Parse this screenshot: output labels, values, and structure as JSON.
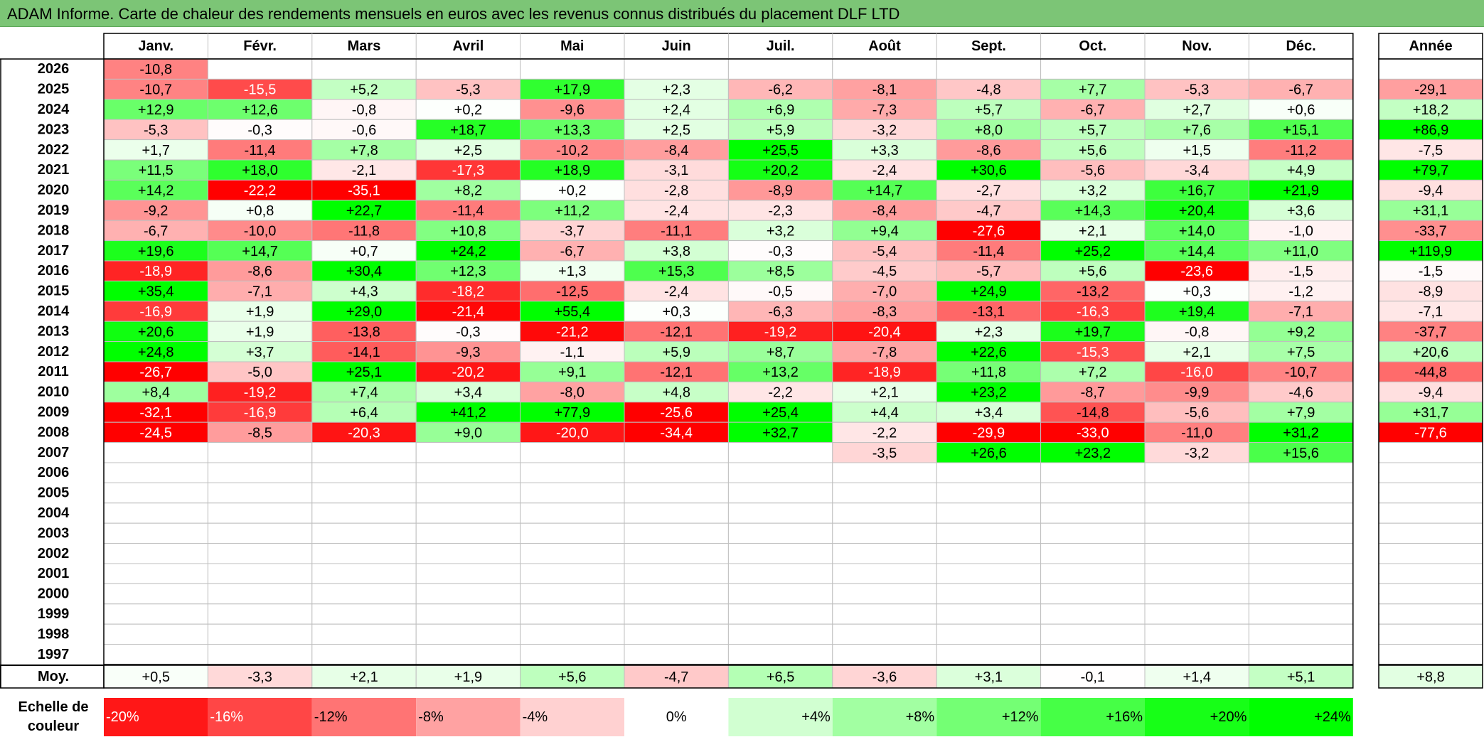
{
  "title": "ADAM Informe. Carte de chaleur des rendements mensuels en euros avec les revenus connus distribués du placement DLF LTD",
  "colors": {
    "neg_full": "#ff0000",
    "pos_full": "#00ff00",
    "neutral": "#ffffff",
    "title_bg": "#7cc576"
  },
  "chart_data": {
    "type": "heatmap",
    "columns": [
      "Janv.",
      "Févr.",
      "Mars",
      "Avril",
      "Mai",
      "Juin",
      "Juil.",
      "Août",
      "Sept.",
      "Oct.",
      "Nov.",
      "Déc."
    ],
    "annual_header": "Année",
    "rows": [
      {
        "year": "2026",
        "values": [
          "-10,8",
          "",
          "",
          "",
          "",
          "",
          "",
          "",
          "",
          "",
          "",
          ""
        ],
        "annual": ""
      },
      {
        "year": "2025",
        "values": [
          "-10,7",
          "-15,5",
          "+5,2",
          "-5,3",
          "+17,9",
          "+2,3",
          "-6,2",
          "-8,1",
          "-4,8",
          "+7,7",
          "-5,3",
          "-6,7"
        ],
        "annual": "-29,1"
      },
      {
        "year": "2024",
        "values": [
          "+12,9",
          "+12,6",
          "-0,8",
          "+0,2",
          "-9,6",
          "+2,4",
          "+6,9",
          "-7,3",
          "+5,7",
          "-6,7",
          "+2,7",
          "+0,6"
        ],
        "annual": "+18,2"
      },
      {
        "year": "2023",
        "values": [
          "-5,3",
          "-0,3",
          "-0,6",
          "+18,7",
          "+13,3",
          "+2,5",
          "+5,9",
          "-3,2",
          "+8,0",
          "+5,7",
          "+7,6",
          "+15,1"
        ],
        "annual": "+86,9"
      },
      {
        "year": "2022",
        "values": [
          "+1,7",
          "-11,4",
          "+7,8",
          "+2,5",
          "-10,2",
          "-8,4",
          "+25,5",
          "+3,3",
          "-8,6",
          "+5,6",
          "+1,5",
          "-11,2"
        ],
        "annual": "-7,5"
      },
      {
        "year": "2021",
        "values": [
          "+11,5",
          "+18,0",
          "-2,1",
          "-17,3",
          "+18,9",
          "-3,1",
          "+20,2",
          "-2,4",
          "+30,6",
          "-5,6",
          "-3,4",
          "+4,9"
        ],
        "annual": "+79,7"
      },
      {
        "year": "2020",
        "values": [
          "+14,2",
          "-22,2",
          "-35,1",
          "+8,2",
          "+0,2",
          "-2,8",
          "-8,9",
          "+14,7",
          "-2,7",
          "+3,2",
          "+16,7",
          "+21,9"
        ],
        "annual": "-9,4"
      },
      {
        "year": "2019",
        "values": [
          "-9,2",
          "+0,8",
          "+22,7",
          "-11,4",
          "+11,2",
          "-2,4",
          "-2,3",
          "-8,4",
          "-4,7",
          "+14,3",
          "+20,4",
          "+3,6"
        ],
        "annual": "+31,1"
      },
      {
        "year": "2018",
        "values": [
          "-6,7",
          "-10,0",
          "-11,8",
          "+10,8",
          "-3,7",
          "-11,1",
          "+3,2",
          "+9,4",
          "-27,6",
          "+2,1",
          "+14,0",
          "-1,0"
        ],
        "annual": "-33,7"
      },
      {
        "year": "2017",
        "values": [
          "+19,6",
          "+14,7",
          "+0,7",
          "+24,2",
          "-6,7",
          "+3,8",
          "-0,3",
          "-5,4",
          "-11,4",
          "+25,2",
          "+14,4",
          "+11,0"
        ],
        "annual": "+119,9"
      },
      {
        "year": "2016",
        "values": [
          "-18,9",
          "-8,6",
          "+30,4",
          "+12,3",
          "+1,3",
          "+15,3",
          "+8,5",
          "-4,5",
          "-5,7",
          "+5,6",
          "-23,6",
          "-1,5"
        ],
        "annual": "-1,5"
      },
      {
        "year": "2015",
        "values": [
          "+35,4",
          "-7,1",
          "+4,3",
          "-18,2",
          "-12,5",
          "-2,4",
          "-0,5",
          "-7,0",
          "+24,9",
          "-13,2",
          "+0,3",
          "-1,2"
        ],
        "annual": "-8,9"
      },
      {
        "year": "2014",
        "values": [
          "-16,9",
          "+1,9",
          "+29,0",
          "-21,4",
          "+55,4",
          "+0,3",
          "-6,3",
          "-8,3",
          "-13,1",
          "-16,3",
          "+19,4",
          "-7,1"
        ],
        "annual": "-7,1"
      },
      {
        "year": "2013",
        "values": [
          "+20,6",
          "+1,9",
          "-13,8",
          "-0,3",
          "-21,2",
          "-12,1",
          "-19,2",
          "-20,4",
          "+2,3",
          "+19,7",
          "-0,8",
          "+9,2"
        ],
        "annual": "-37,7"
      },
      {
        "year": "2012",
        "values": [
          "+24,8",
          "+3,7",
          "-14,1",
          "-9,3",
          "-1,1",
          "+5,9",
          "+8,7",
          "-7,8",
          "+22,6",
          "-15,3",
          "+2,1",
          "+7,5"
        ],
        "annual": "+20,6"
      },
      {
        "year": "2011",
        "values": [
          "-26,7",
          "-5,0",
          "+25,1",
          "-20,2",
          "+9,1",
          "-12,1",
          "+13,2",
          "-18,9",
          "+11,8",
          "+7,2",
          "-16,0",
          "-10,7"
        ],
        "annual": "-44,8"
      },
      {
        "year": "2010",
        "values": [
          "+8,4",
          "-19,2",
          "+7,4",
          "+3,4",
          "-8,0",
          "+4,8",
          "-2,2",
          "+2,1",
          "+23,2",
          "-8,7",
          "-9,9",
          "-4,6"
        ],
        "annual": "-9,4"
      },
      {
        "year": "2009",
        "values": [
          "-32,1",
          "-16,9",
          "+6,4",
          "+41,2",
          "+77,9",
          "-25,6",
          "+25,4",
          "+4,4",
          "+3,4",
          "-14,8",
          "-5,6",
          "+7,9"
        ],
        "annual": "+31,7"
      },
      {
        "year": "2008",
        "values": [
          "-24,5",
          "-8,5",
          "-20,3",
          "+9,0",
          "-20,0",
          "-34,4",
          "+32,7",
          "-2,2",
          "-29,9",
          "-33,0",
          "-11,0",
          "+31,2"
        ],
        "annual": "-77,6"
      },
      {
        "year": "2007",
        "values": [
          "",
          "",
          "",
          "",
          "",
          "",
          "",
          "-3,5",
          "+26,6",
          "+23,2",
          "-3,2",
          "+15,6"
        ],
        "annual": ""
      },
      {
        "year": "2006",
        "values": [
          "",
          "",
          "",
          "",
          "",
          "",
          "",
          "",
          "",
          "",
          "",
          ""
        ],
        "annual": ""
      },
      {
        "year": "2005",
        "values": [
          "",
          "",
          "",
          "",
          "",
          "",
          "",
          "",
          "",
          "",
          "",
          ""
        ],
        "annual": ""
      },
      {
        "year": "2004",
        "values": [
          "",
          "",
          "",
          "",
          "",
          "",
          "",
          "",
          "",
          "",
          "",
          ""
        ],
        "annual": ""
      },
      {
        "year": "2003",
        "values": [
          "",
          "",
          "",
          "",
          "",
          "",
          "",
          "",
          "",
          "",
          "",
          ""
        ],
        "annual": ""
      },
      {
        "year": "2002",
        "values": [
          "",
          "",
          "",
          "",
          "",
          "",
          "",
          "",
          "",
          "",
          "",
          ""
        ],
        "annual": ""
      },
      {
        "year": "2001",
        "values": [
          "",
          "",
          "",
          "",
          "",
          "",
          "",
          "",
          "",
          "",
          "",
          ""
        ],
        "annual": ""
      },
      {
        "year": "2000",
        "values": [
          "",
          "",
          "",
          "",
          "",
          "",
          "",
          "",
          "",
          "",
          "",
          ""
        ],
        "annual": ""
      },
      {
        "year": "1999",
        "values": [
          "",
          "",
          "",
          "",
          "",
          "",
          "",
          "",
          "",
          "",
          "",
          ""
        ],
        "annual": ""
      },
      {
        "year": "1998",
        "values": [
          "",
          "",
          "",
          "",
          "",
          "",
          "",
          "",
          "",
          "",
          "",
          ""
        ],
        "annual": ""
      },
      {
        "year": "1997",
        "values": [
          "",
          "",
          "",
          "",
          "",
          "",
          "",
          "",
          "",
          "",
          "",
          ""
        ],
        "annual": ""
      }
    ],
    "average": {
      "label": "Moy.",
      "values": [
        "+0,5",
        "-3,3",
        "+2,1",
        "+1,9",
        "+5,6",
        "-4,7",
        "+6,5",
        "-3,6",
        "+3,1",
        "-0,1",
        "+1,4",
        "+5,1"
      ],
      "annual": "+8,8"
    },
    "scale": {
      "label_line1": "Echelle de",
      "label_line2": "couleur",
      "steps": [
        "-20%",
        "-16%",
        "-12%",
        "-8%",
        "-4%",
        "0%",
        "+4%",
        "+8%",
        "+12%",
        "+16%",
        "+20%",
        "+24%"
      ],
      "values": [
        -20,
        -16,
        -12,
        -8,
        -4,
        0,
        4,
        8,
        12,
        16,
        20,
        24
      ]
    }
  }
}
